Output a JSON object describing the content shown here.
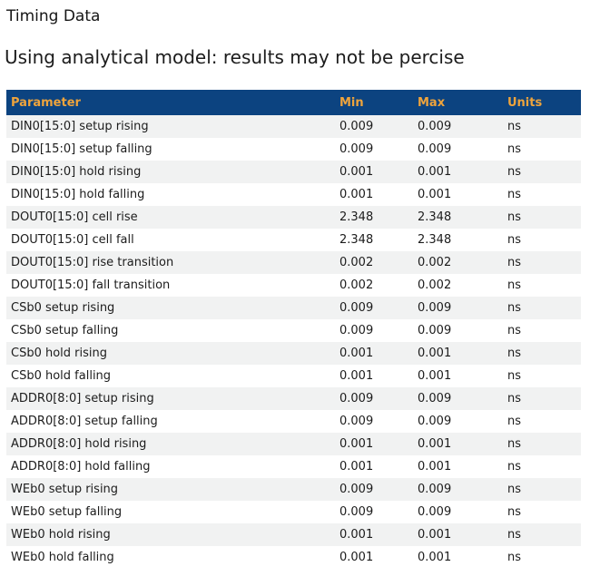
{
  "page": {
    "title": "Timing Data",
    "subtitle": "Using analytical model: results may not be percise"
  },
  "colors": {
    "header_bg": "#0C4380",
    "header_text": "#EFA43C",
    "stripe_bg": "#F1F2F2",
    "text": "#1C1C1C"
  },
  "table": {
    "columns": [
      "Parameter",
      "Min",
      "Max",
      "Units"
    ],
    "rows": [
      [
        "DIN0[15:0] setup rising",
        "0.009",
        "0.009",
        "ns"
      ],
      [
        "DIN0[15:0] setup falling",
        "0.009",
        "0.009",
        "ns"
      ],
      [
        "DIN0[15:0] hold rising",
        "0.001",
        "0.001",
        "ns"
      ],
      [
        "DIN0[15:0] hold falling",
        "0.001",
        "0.001",
        "ns"
      ],
      [
        "DOUT0[15:0] cell rise",
        "2.348",
        "2.348",
        "ns"
      ],
      [
        "DOUT0[15:0] cell fall",
        "2.348",
        "2.348",
        "ns"
      ],
      [
        "DOUT0[15:0] rise transition",
        "0.002",
        "0.002",
        "ns"
      ],
      [
        "DOUT0[15:0] fall transition",
        "0.002",
        "0.002",
        "ns"
      ],
      [
        "CSb0 setup rising",
        "0.009",
        "0.009",
        "ns"
      ],
      [
        "CSb0 setup falling",
        "0.009",
        "0.009",
        "ns"
      ],
      [
        "CSb0 hold rising",
        "0.001",
        "0.001",
        "ns"
      ],
      [
        "CSb0 hold falling",
        "0.001",
        "0.001",
        "ns"
      ],
      [
        "ADDR0[8:0] setup rising",
        "0.009",
        "0.009",
        "ns"
      ],
      [
        "ADDR0[8:0] setup falling",
        "0.009",
        "0.009",
        "ns"
      ],
      [
        "ADDR0[8:0] hold rising",
        "0.001",
        "0.001",
        "ns"
      ],
      [
        "ADDR0[8:0] hold falling",
        "0.001",
        "0.001",
        "ns"
      ],
      [
        "WEb0 setup rising",
        "0.009",
        "0.009",
        "ns"
      ],
      [
        "WEb0 setup falling",
        "0.009",
        "0.009",
        "ns"
      ],
      [
        "WEb0 hold rising",
        "0.001",
        "0.001",
        "ns"
      ],
      [
        "WEb0 hold falling",
        "0.001",
        "0.001",
        "ns"
      ]
    ]
  }
}
